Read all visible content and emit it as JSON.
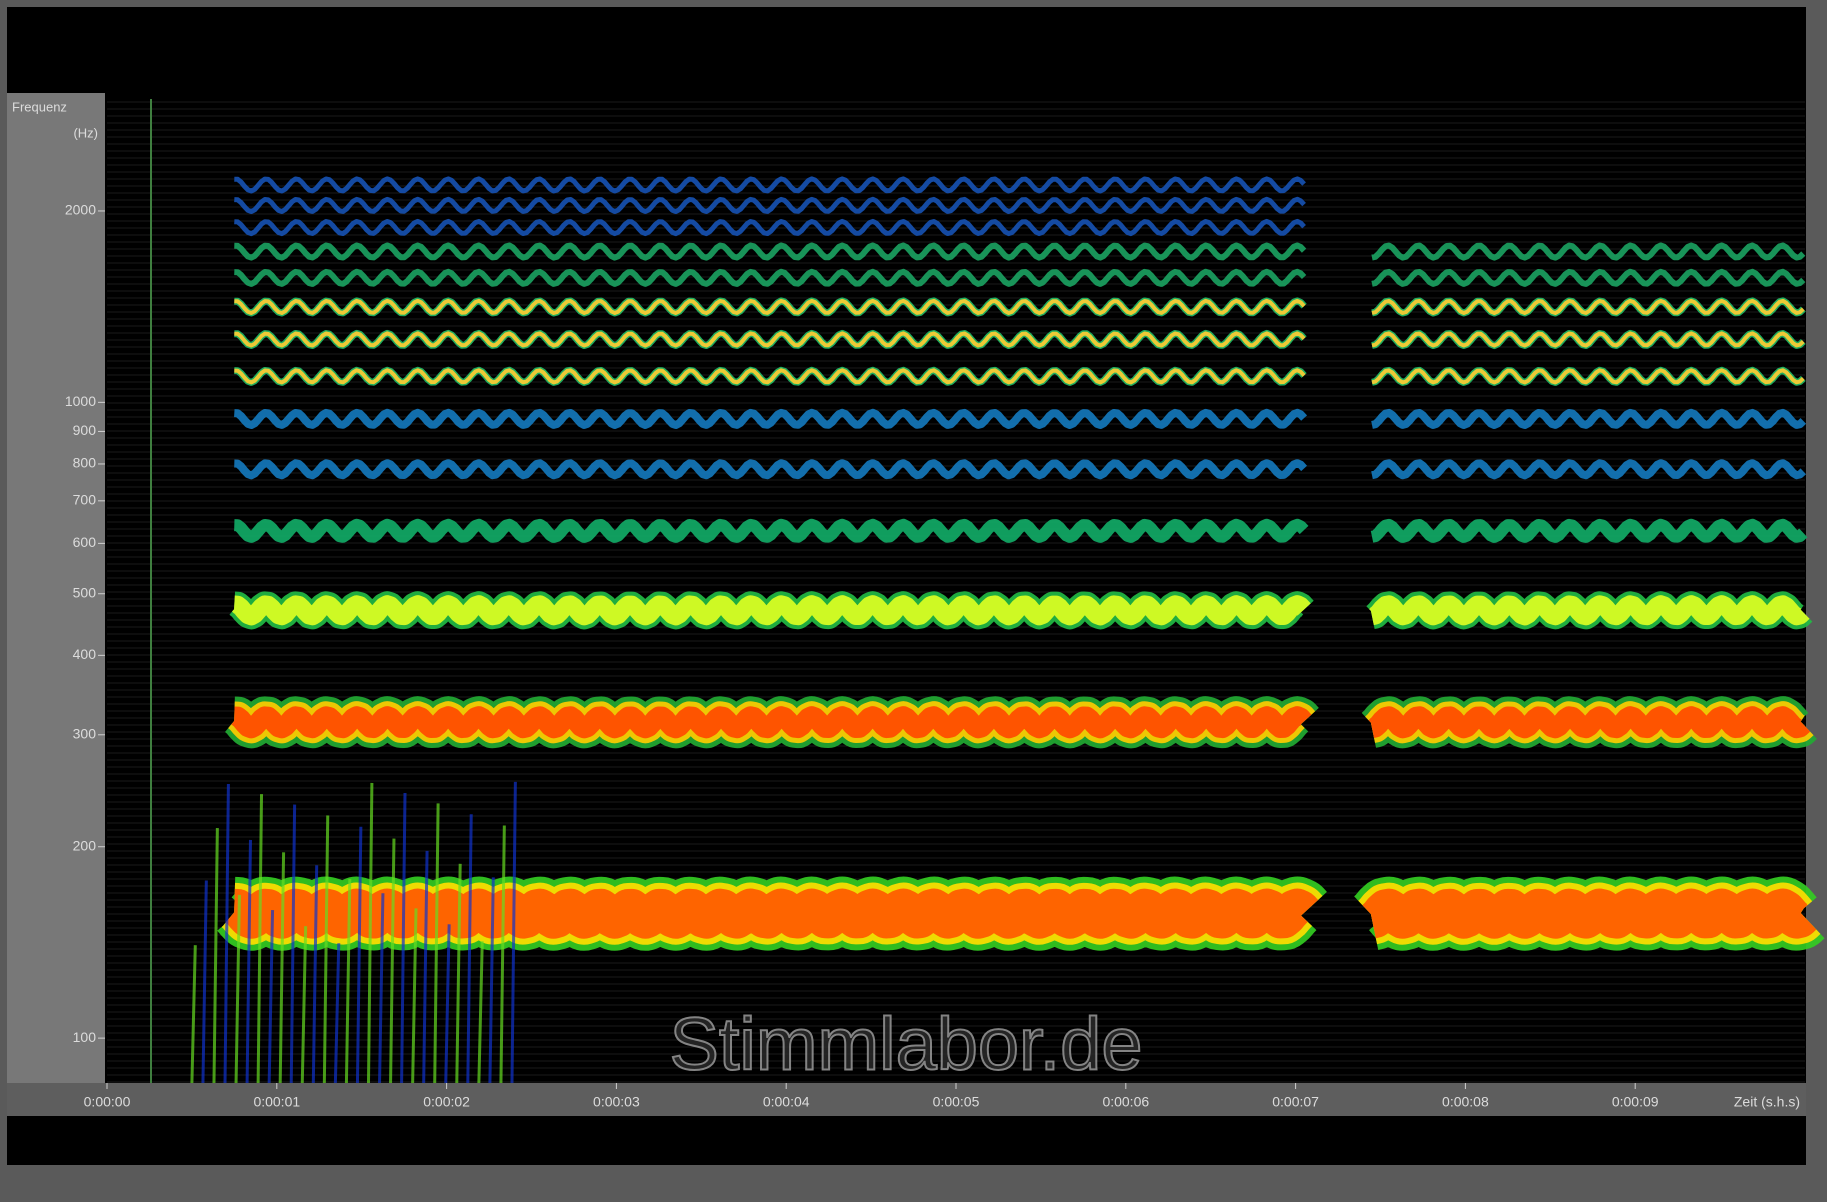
{
  "chart_data": {
    "type": "spectrogram",
    "y_label_line1": "Frequenz",
    "y_label_line2": "(Hz)",
    "x_label": "Zeit (s.h.s)",
    "watermark": "Stimmlabor.de",
    "y_log": true,
    "ylim": [
      85,
      3000
    ],
    "yticks": [
      100,
      200,
      300,
      400,
      500,
      600,
      700,
      800,
      900,
      1000,
      2000
    ],
    "xlim": [
      0,
      10
    ],
    "xticks": [
      {
        "value": 0,
        "label": "0:00:00"
      },
      {
        "value": 1,
        "label": "0:00:01"
      },
      {
        "value": 2,
        "label": "0:00:02"
      },
      {
        "value": 3,
        "label": "0:00:03"
      },
      {
        "value": 4,
        "label": "0:00:04"
      },
      {
        "value": 5,
        "label": "0:00:05"
      },
      {
        "value": 6,
        "label": "0:00:06"
      },
      {
        "value": 7,
        "label": "0:00:07"
      },
      {
        "value": 8,
        "label": "0:00:08"
      },
      {
        "value": 9,
        "label": "0:00:09"
      }
    ]
  }
}
